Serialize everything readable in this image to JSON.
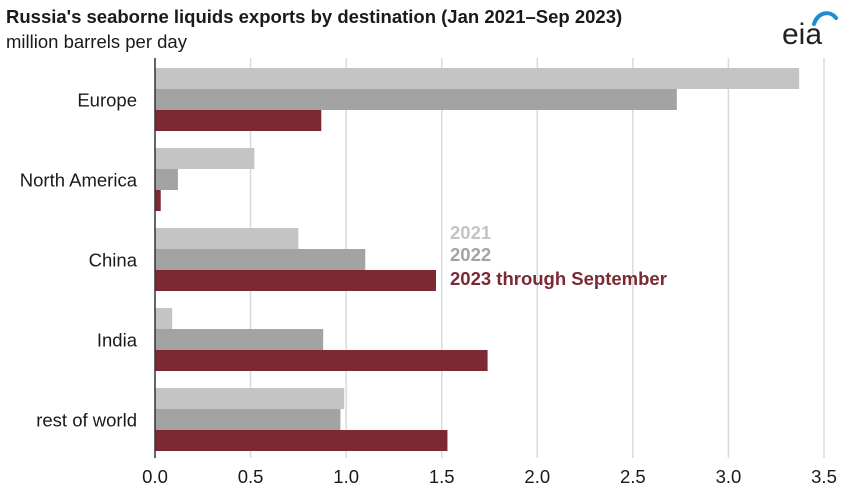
{
  "header": {
    "title": "Russia's seaborne liquids exports by destination (Jan 2021–Sep 2023)",
    "subtitle": "million barrels per day",
    "logo_text": "eia"
  },
  "colors": {
    "s2021": "#c4c4c4",
    "s2022": "#a3a3a3",
    "s2023": "#7c2934",
    "grid": "#d9d9d9",
    "axis": "#333333",
    "logo_arc": "#1b8fcd"
  },
  "chart_data": {
    "type": "bar",
    "orientation": "horizontal",
    "title": "Russia's seaborne liquids exports by destination (Jan 2021–Sep 2023)",
    "subtitle": "million barrels per day",
    "categories": [
      "Europe",
      "North America",
      "China",
      "India",
      "rest of world"
    ],
    "series": [
      {
        "name": "2021",
        "color_key": "s2021",
        "values": [
          3.37,
          0.52,
          0.75,
          0.09,
          0.99
        ]
      },
      {
        "name": "2022",
        "color_key": "s2022",
        "values": [
          2.73,
          0.12,
          1.1,
          0.88,
          0.97
        ]
      },
      {
        "name": "2023 through September",
        "color_key": "s2023",
        "values": [
          0.87,
          0.03,
          1.47,
          1.74,
          1.53
        ]
      }
    ],
    "xlim": [
      0,
      3.5
    ],
    "xticks": [
      "0.0",
      "0.5",
      "1.0",
      "1.5",
      "2.0",
      "2.5",
      "3.0",
      "3.5"
    ],
    "xtick_values": [
      0,
      0.5,
      1.0,
      1.5,
      2.0,
      2.5,
      3.0,
      3.5
    ],
    "grid": true,
    "legend": [
      "2021",
      "2022",
      "2023 through September"
    ],
    "legend_position": "center-right"
  }
}
